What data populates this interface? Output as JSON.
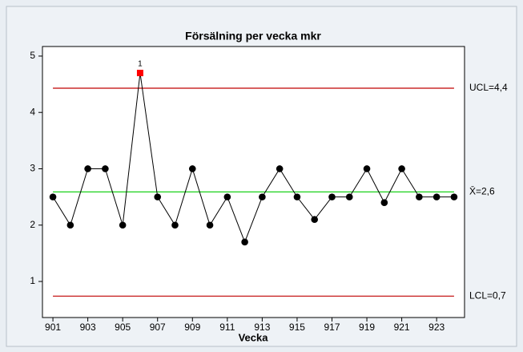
{
  "chart_data": {
    "type": "control",
    "title": "Försälning per vecka mkr",
    "x_label": "Vecka",
    "x": [
      901,
      902,
      903,
      904,
      905,
      906,
      907,
      908,
      909,
      910,
      911,
      912,
      913,
      914,
      915,
      916,
      917,
      918,
      919,
      920,
      921,
      922,
      923,
      924
    ],
    "series": [
      {
        "name": "Försälning",
        "color": "#000000",
        "values": [
          2.5,
          2.0,
          3.0,
          3.0,
          2.0,
          4.7,
          2.5,
          2.0,
          3.0,
          2.0,
          2.5,
          1.7,
          2.5,
          3.0,
          2.5,
          2.1,
          2.5,
          2.5,
          3.0,
          2.4,
          3.0,
          2.5,
          2.5,
          2.5
        ]
      }
    ],
    "limits": [
      {
        "label": "UCL=4,4",
        "value": 4.43,
        "color": "#c00000"
      },
      {
        "label": "X̄=2,6",
        "value": 2.59,
        "color": "#00cc00"
      },
      {
        "label": "LCL=0,7",
        "value": 0.74,
        "color": "#c00000"
      }
    ],
    "flags": [
      {
        "index": 5,
        "label": "1",
        "color": "#ff0000"
      }
    ],
    "xlim": [
      900.4,
      924.6
    ],
    "xticks": [
      901,
      903,
      905,
      907,
      909,
      911,
      913,
      915,
      917,
      919,
      921,
      923
    ],
    "ylim": [
      0.36,
      5.17
    ],
    "yticks": [
      1,
      2,
      3,
      4,
      5
    ]
  }
}
